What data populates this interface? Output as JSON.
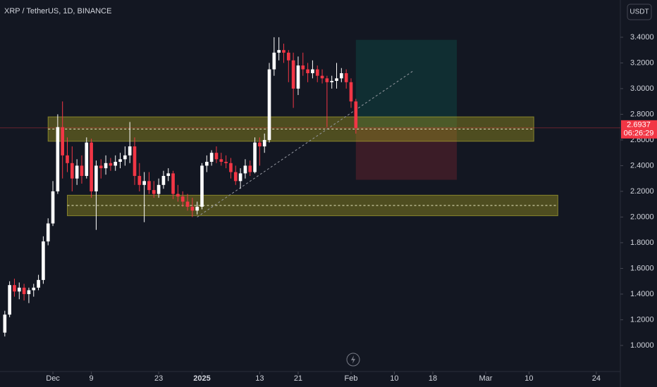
{
  "chart_data": {
    "type": "candlestick",
    "title": "XRP / TetherUS, 1D, BINANCE",
    "currency": "USDT",
    "countdown": "06:26:29",
    "up_color": "#ffffff",
    "down_color": "#f23645",
    "x": [
      "2024-11-21",
      "2024-11-22",
      "2024-11-23",
      "2024-11-24",
      "2024-11-25",
      "2024-11-26",
      "2024-11-27",
      "2024-11-28",
      "2024-11-29",
      "2024-11-30",
      "2024-12-01",
      "2024-12-02",
      "2024-12-03",
      "2024-12-04",
      "2024-12-05",
      "2024-12-06",
      "2024-12-07",
      "2024-12-08",
      "2024-12-09",
      "2024-12-10",
      "2024-12-11",
      "2024-12-12",
      "2024-12-13",
      "2024-12-14",
      "2024-12-15",
      "2024-12-16",
      "2024-12-17",
      "2024-12-18",
      "2024-12-19",
      "2024-12-20",
      "2024-12-21",
      "2024-12-22",
      "2024-12-23",
      "2024-12-24",
      "2024-12-25",
      "2024-12-26",
      "2024-12-27",
      "2024-12-28",
      "2024-12-29",
      "2024-12-30",
      "2024-12-31",
      "2025-01-01",
      "2025-01-02",
      "2025-01-03",
      "2025-01-04",
      "2025-01-05",
      "2025-01-06",
      "2025-01-07",
      "2025-01-08",
      "2025-01-09",
      "2025-01-10",
      "2025-01-11",
      "2025-01-12",
      "2025-01-13",
      "2025-01-14",
      "2025-01-15",
      "2025-01-16",
      "2025-01-17",
      "2025-01-18",
      "2025-01-19",
      "2025-01-20",
      "2025-01-21",
      "2025-01-22",
      "2025-01-23",
      "2025-01-24",
      "2025-01-25",
      "2025-01-26",
      "2025-01-27",
      "2025-01-28",
      "2025-01-29",
      "2025-01-30",
      "2025-01-31",
      "2025-02-01",
      "2025-02-02"
    ],
    "open": [
      1.1,
      1.24,
      1.47,
      1.42,
      1.45,
      1.4,
      1.43,
      1.45,
      1.51,
      1.81,
      1.95,
      2.2,
      2.7,
      2.48,
      2.42,
      2.3,
      2.4,
      2.32,
      2.58,
      2.2,
      2.4,
      2.38,
      2.42,
      2.4,
      2.43,
      2.45,
      2.48,
      2.55,
      2.32,
      2.25,
      2.28,
      2.21,
      2.18,
      2.25,
      2.32,
      2.34,
      2.18,
      2.16,
      2.12,
      2.08,
      2.05,
      2.08,
      2.4,
      2.43,
      2.5,
      2.45,
      2.43,
      2.42,
      2.35,
      2.28,
      2.34,
      2.4,
      2.35,
      2.58,
      2.55,
      2.6,
      3.15,
      3.28,
      3.3,
      3.28,
      3.22,
      3.0,
      3.18,
      3.15,
      3.12,
      3.15,
      3.1,
      3.08,
      3.05,
      3.06,
      3.08,
      3.12,
      3.05,
      2.9
    ],
    "high": [
      1.27,
      1.5,
      1.52,
      1.49,
      1.48,
      1.45,
      1.48,
      1.55,
      1.85,
      1.99,
      2.28,
      2.8,
      2.9,
      2.62,
      2.55,
      2.45,
      2.48,
      2.62,
      2.61,
      2.44,
      2.45,
      2.48,
      2.46,
      2.48,
      2.5,
      2.55,
      2.74,
      2.62,
      2.42,
      2.35,
      2.35,
      2.28,
      2.3,
      2.36,
      2.38,
      2.36,
      2.25,
      2.2,
      2.18,
      2.15,
      2.12,
      2.42,
      2.48,
      2.52,
      2.55,
      2.5,
      2.48,
      2.46,
      2.4,
      2.38,
      2.45,
      2.44,
      2.62,
      2.62,
      2.65,
      3.2,
      3.4,
      3.4,
      3.35,
      3.3,
      3.28,
      3.25,
      3.28,
      3.2,
      3.22,
      3.18,
      3.15,
      3.1,
      3.1,
      3.2,
      3.16,
      3.15,
      3.08,
      2.92
    ],
    "low": [
      1.07,
      1.22,
      1.38,
      1.36,
      1.35,
      1.33,
      1.38,
      1.43,
      1.48,
      1.78,
      1.93,
      2.18,
      2.3,
      2.35,
      2.2,
      2.25,
      2.26,
      2.3,
      2.15,
      1.9,
      2.3,
      2.33,
      2.36,
      2.36,
      2.38,
      2.4,
      2.42,
      2.25,
      2.2,
      1.96,
      2.18,
      2.15,
      2.15,
      2.22,
      2.28,
      2.14,
      2.12,
      2.08,
      2.05,
      2.0,
      2.02,
      2.06,
      2.35,
      2.4,
      2.42,
      2.4,
      2.38,
      2.3,
      2.25,
      2.22,
      2.3,
      2.32,
      2.34,
      2.4,
      2.5,
      2.58,
      3.1,
      3.22,
      3.2,
      3.05,
      2.85,
      2.95,
      3.1,
      3.05,
      3.08,
      3.05,
      3.04,
      2.7,
      3.0,
      3.0,
      3.05,
      3.0,
      2.85,
      2.65
    ],
    "close": [
      1.24,
      1.47,
      1.42,
      1.45,
      1.4,
      1.43,
      1.45,
      1.51,
      1.81,
      1.95,
      2.2,
      2.7,
      2.48,
      2.42,
      2.3,
      2.4,
      2.32,
      2.58,
      2.2,
      2.4,
      2.38,
      2.42,
      2.4,
      2.43,
      2.45,
      2.48,
      2.55,
      2.32,
      2.25,
      2.28,
      2.21,
      2.18,
      2.25,
      2.32,
      2.34,
      2.18,
      2.16,
      2.12,
      2.08,
      2.05,
      2.08,
      2.4,
      2.43,
      2.5,
      2.45,
      2.43,
      2.42,
      2.35,
      2.28,
      2.34,
      2.4,
      2.35,
      2.58,
      2.55,
      2.6,
      3.15,
      3.28,
      3.3,
      3.28,
      3.22,
      3.0,
      3.18,
      3.15,
      3.12,
      3.15,
      3.1,
      3.08,
      3.05,
      3.06,
      3.08,
      3.12,
      3.05,
      2.9,
      2.6937
    ],
    "xlim": [
      "2024-11-20",
      "2025-03-29"
    ],
    "xticks": [
      {
        "value": "2024-12-01",
        "label": "Dec"
      },
      {
        "value": "2024-12-09",
        "label": "9"
      },
      {
        "value": "2024-12-23",
        "label": "23"
      },
      {
        "value": "2025-01-01",
        "label": "2025"
      },
      {
        "value": "2025-01-13",
        "label": "13"
      },
      {
        "value": "2025-01-21",
        "label": "21"
      },
      {
        "value": "2025-02-01",
        "label": "Feb"
      },
      {
        "value": "2025-02-10",
        "label": "10"
      },
      {
        "value": "2025-02-18",
        "label": "18"
      },
      {
        "value": "2025-03-01",
        "label": "Mar"
      },
      {
        "value": "2025-03-10",
        "label": "10"
      },
      {
        "value": "2025-03-24",
        "label": "24"
      }
    ],
    "ylim": [
      0.797,
      3.69
    ],
    "yticks": [
      {
        "value": 1.0,
        "label": "1.0000"
      },
      {
        "value": 1.2,
        "label": "1.2000"
      },
      {
        "value": 1.4,
        "label": "1.4000"
      },
      {
        "value": 1.6,
        "label": "1.6000"
      },
      {
        "value": 1.8,
        "label": "1.8000"
      },
      {
        "value": 2.0,
        "label": "2.0000"
      },
      {
        "value": 2.2,
        "label": "2.2000"
      },
      {
        "value": 2.4,
        "label": "2.4000"
      },
      {
        "value": 2.6,
        "label": "2.6000"
      },
      {
        "value": 2.8,
        "label": "2.8000"
      },
      {
        "value": 3.0,
        "label": "3.0000"
      },
      {
        "value": 3.2,
        "label": "3.2000"
      },
      {
        "value": 3.4,
        "label": "3.4000"
      }
    ],
    "zones": [
      {
        "start": "2024-11-30",
        "end": "2025-03-11",
        "top": 2.78,
        "bottom": 2.59
      },
      {
        "start": "2024-12-04",
        "end": "2025-03-16",
        "top": 2.17,
        "bottom": 2.01
      }
    ],
    "position": {
      "start": "2025-02-02",
      "end": "2025-02-23",
      "target": 3.38,
      "stop": 2.29
    },
    "trend_line": {
      "x": [
        "2024-12-31",
        "2025-02-14"
      ],
      "y": [
        2.0,
        3.14
      ]
    }
  }
}
